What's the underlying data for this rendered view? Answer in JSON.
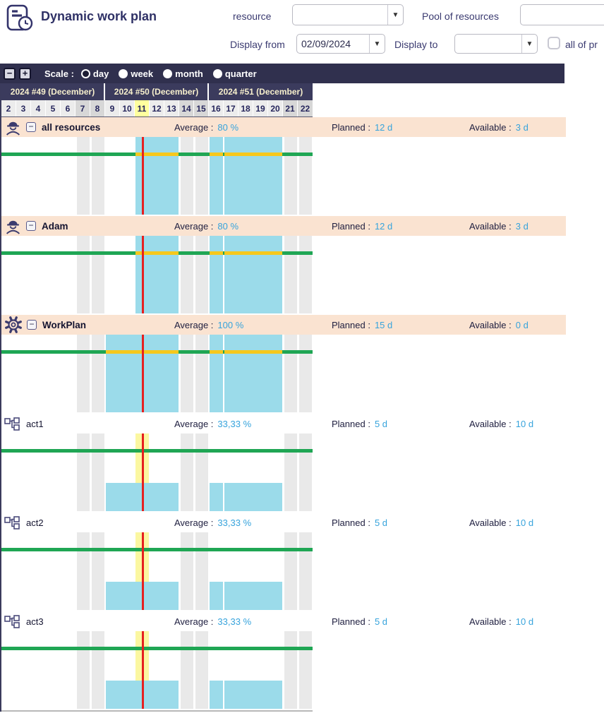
{
  "app": {
    "title": "Dynamic work plan"
  },
  "filters": {
    "resource_label": "resource",
    "resource_value": "",
    "pool_label": "Pool of resources",
    "pool_value": "",
    "display_from_label": "Display from",
    "display_from_value": "02/09/2024",
    "display_to_label": "Display to",
    "display_to_value": "",
    "all_projects_label": "all of pr",
    "all_projects_checked": false
  },
  "toolbar": {
    "zoom_out": "−",
    "zoom_in": "+",
    "scale_label": "Scale :",
    "scales": [
      {
        "label": "day",
        "selected": true
      },
      {
        "label": "week",
        "selected": false
      },
      {
        "label": "month",
        "selected": false
      },
      {
        "label": "quarter",
        "selected": false
      }
    ]
  },
  "colors": {
    "navy_accent": "#30304e",
    "week_band": "#3b3b5d",
    "header_peach": "#fae3d1",
    "bar_blue": "#9bdbea",
    "capacity_green": "#1fa654",
    "overload_yellow": "#f6c81d",
    "today_yellow": "#ffff9e",
    "now_red": "#e62020",
    "value_blue": "#36a3dc"
  },
  "chart_data": {
    "type": "resource-workload-timeline",
    "weeks": [
      "2024 #49 (December)",
      "2024 #50 (December)",
      "2024 #51 (December)"
    ],
    "days": [
      "2",
      "3",
      "4",
      "5",
      "6",
      "7",
      "8",
      "9",
      "10",
      "11",
      "12",
      "13",
      "14",
      "15",
      "16",
      "17",
      "18",
      "19",
      "20",
      "21",
      "22"
    ],
    "weekend_days": [
      7,
      8,
      14,
      15,
      21,
      22
    ],
    "today_day": 11,
    "stat_labels": {
      "average": "Average :",
      "planned": "Planned :",
      "available": "Available :"
    },
    "rows": [
      {
        "name": "all resources",
        "icon": "worker-icon",
        "group": true,
        "collapsible": true,
        "average": "80 %",
        "planned": "12 d",
        "available": "3 d",
        "workload_day_ranges": [
          [
            11,
            13
          ],
          [
            16,
            16
          ],
          [
            17,
            20
          ]
        ],
        "bar_height_pct": 100,
        "line_highlight_on_bars": true,
        "today_band": false
      },
      {
        "name": "Adam",
        "icon": "worker-icon",
        "group": true,
        "collapsible": true,
        "average": "80 %",
        "planned": "12 d",
        "available": "3 d",
        "workload_day_ranges": [
          [
            11,
            13
          ],
          [
            16,
            16
          ],
          [
            17,
            20
          ]
        ],
        "bar_height_pct": 100,
        "line_highlight_on_bars": true,
        "today_band": false
      },
      {
        "name": "WorkPlan",
        "icon": "gear-icon",
        "group": true,
        "collapsible": true,
        "average": "100 %",
        "planned": "15 d",
        "available": "0 d",
        "workload_day_ranges": [
          [
            9,
            13
          ],
          [
            16,
            16
          ],
          [
            17,
            20
          ]
        ],
        "bar_height_pct": 100,
        "line_highlight_on_bars": true,
        "today_band": false
      },
      {
        "name": "act1",
        "icon": "activity-icon",
        "group": false,
        "collapsible": false,
        "average": "33,33 %",
        "planned": "5 d",
        "available": "10 d",
        "workload_day_ranges": [
          [
            9,
            13
          ],
          [
            16,
            16
          ],
          [
            17,
            20
          ]
        ],
        "bar_height_pct": 36,
        "line_highlight_on_bars": false,
        "today_band": true
      },
      {
        "name": "act2",
        "icon": "activity-icon",
        "group": false,
        "collapsible": false,
        "average": "33,33 %",
        "planned": "5 d",
        "available": "10 d",
        "workload_day_ranges": [
          [
            9,
            13
          ],
          [
            16,
            16
          ],
          [
            17,
            20
          ]
        ],
        "bar_height_pct": 36,
        "line_highlight_on_bars": false,
        "today_band": true
      },
      {
        "name": "act3",
        "icon": "activity-icon",
        "group": false,
        "collapsible": false,
        "average": "33,33 %",
        "planned": "5 d",
        "available": "10 d",
        "workload_day_ranges": [
          [
            9,
            13
          ],
          [
            16,
            16
          ],
          [
            17,
            20
          ]
        ],
        "bar_height_pct": 36,
        "line_highlight_on_bars": false,
        "today_band": true
      }
    ]
  }
}
